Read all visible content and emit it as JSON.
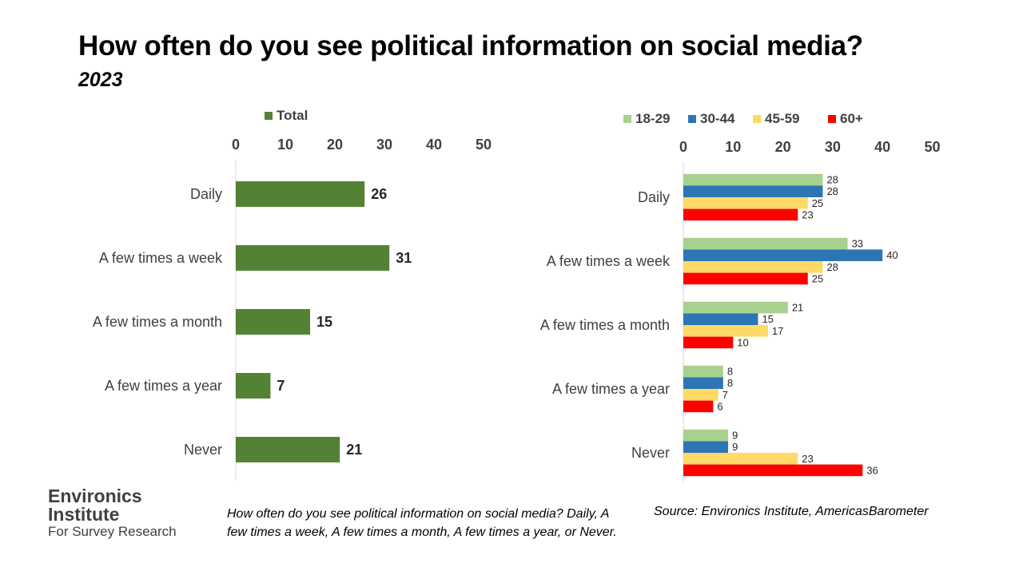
{
  "title": "How often do you see political information on social media?",
  "subtitle": "2023",
  "logo": {
    "line1": "Environics",
    "line2": "Institute",
    "line3": "For Survey Research"
  },
  "footnote": "How often do you see political information on social media? Daily, A few times a week, A few times a month, A few times a year, or Never.",
  "source": "Source: Environics Institute, AmericasBarometer",
  "chart_data": [
    {
      "type": "bar",
      "orientation": "horizontal",
      "categories": [
        "Daily",
        "A few times a week",
        "A few times a month",
        "A few times a year",
        "Never"
      ],
      "series": [
        {
          "name": "Total",
          "color": "#548235",
          "values": [
            26,
            31,
            15,
            7,
            21
          ]
        }
      ],
      "xlim": [
        0,
        50
      ],
      "ticks": [
        0,
        10,
        20,
        30,
        40,
        50
      ],
      "legend_position": "top",
      "grid": false
    },
    {
      "type": "bar",
      "orientation": "horizontal",
      "categories": [
        "Daily",
        "A few times a week",
        "A few times a month",
        "A few times a year",
        "Never"
      ],
      "series": [
        {
          "name": "18-29",
          "color": "#A9D18E",
          "values": [
            28,
            33,
            21,
            8,
            9
          ]
        },
        {
          "name": "30-44",
          "color": "#2E75B6",
          "values": [
            28,
            40,
            15,
            8,
            9
          ]
        },
        {
          "name": "45-59",
          "color": "#FFD966",
          "values": [
            25,
            28,
            17,
            7,
            23
          ]
        },
        {
          "name": "60+",
          "color": "#FF0000",
          "values": [
            23,
            25,
            10,
            6,
            36
          ]
        }
      ],
      "xlim": [
        0,
        50
      ],
      "ticks": [
        0,
        10,
        20,
        30,
        40,
        50
      ],
      "legend_position": "top",
      "grid": false
    }
  ]
}
